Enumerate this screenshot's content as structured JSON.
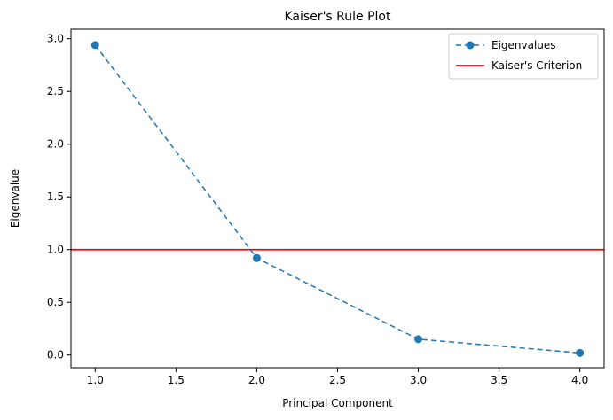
{
  "chart_data": {
    "type": "line",
    "title": "Kaiser's Rule Plot",
    "xlabel": "Principal Component",
    "ylabel": "Eigenvalue",
    "xlim": [
      0.85,
      4.15
    ],
    "ylim": [
      -0.12,
      3.09
    ],
    "x_ticks": [
      1.0,
      1.5,
      2.0,
      2.5,
      3.0,
      3.5,
      4.0
    ],
    "x_tick_labels": [
      "1.0",
      "1.5",
      "2.0",
      "2.5",
      "3.0",
      "3.5",
      "4.0"
    ],
    "y_ticks": [
      0.0,
      0.5,
      1.0,
      1.5,
      2.0,
      2.5,
      3.0
    ],
    "y_tick_labels": [
      "0.0",
      "0.5",
      "1.0",
      "1.5",
      "2.0",
      "2.5",
      "3.0"
    ],
    "grid": false,
    "legend_position": "top-right",
    "series": [
      {
        "name": "Eigenvalues",
        "x": [
          1,
          2,
          3,
          4
        ],
        "y": [
          2.94,
          0.92,
          0.15,
          0.02
        ],
        "color": "#1f77b4",
        "line_style": "dashed",
        "marker": "circle"
      }
    ],
    "reference_lines": [
      {
        "name": "Kaiser's Criterion",
        "orientation": "horizontal",
        "y": 1.0,
        "color": "#ff0000",
        "line_style": "solid"
      }
    ]
  }
}
